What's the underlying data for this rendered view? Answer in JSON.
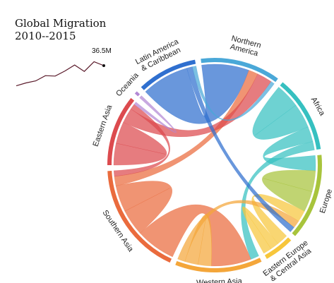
{
  "title_lines": [
    "Global Migration",
    "2010--2015"
  ],
  "sparkline": {
    "label": "36.5M",
    "values": [
      15.2,
      17.8,
      19.6,
      24.2,
      23.8,
      28.3,
      33.6,
      27.9,
      36.5,
      33.0
    ]
  },
  "chart_data": {
    "type": "chord",
    "title": "Global Migration 2010--2015",
    "regions": [
      {
        "name": "Northern America",
        "label_lines": [
          "Northern",
          "America"
        ],
        "color": "#4aa8d8"
      },
      {
        "name": "Africa",
        "label_lines": [
          "Africa"
        ],
        "color": "#36c0c0"
      },
      {
        "name": "Europe",
        "label_lines": [
          "Europe"
        ],
        "color": "#a8c43c"
      },
      {
        "name": "Eastern Europe & Central Asia",
        "label_lines": [
          "Eastern Europe",
          "& Central Asia"
        ],
        "color": "#f7c63b"
      },
      {
        "name": "Western Asia",
        "label_lines": [
          "Western Asia"
        ],
        "color": "#f4a63a"
      },
      {
        "name": "Southern Asia",
        "label_lines": [
          "Southern Asia"
        ],
        "color": "#ea6b3d"
      },
      {
        "name": "Eastern Asia",
        "label_lines": [
          "Eastern Asia"
        ],
        "color": "#dc4a4e"
      },
      {
        "name": "Oceania",
        "label_lines": [
          "Oceania"
        ],
        "color": "#b388d4"
      },
      {
        "name": "Latin America & Caribbean",
        "label_lines": [
          "Latin America",
          "& Caribbean"
        ],
        "color": "#2f6fcf"
      }
    ],
    "flows": [
      {
        "source": "Latin America & Caribbean",
        "target": "Northern America",
        "value": 5.0
      },
      {
        "source": "Africa",
        "target": "Africa",
        "value": 2.6
      },
      {
        "source": "Africa",
        "target": "Europe",
        "value": 1.6
      },
      {
        "source": "Africa",
        "target": "Western Asia",
        "value": 0.9
      },
      {
        "source": "Europe",
        "target": "Europe",
        "value": 2.2
      },
      {
        "source": "Eastern Europe & Central Asia",
        "target": "Europe",
        "value": 1.2
      },
      {
        "source": "Eastern Europe & Central Asia",
        "target": "Eastern Europe & Central Asia",
        "value": 0.9
      },
      {
        "source": "Southern Asia",
        "target": "Western Asia",
        "value": 4.2
      },
      {
        "source": "Southern Asia",
        "target": "Southern Asia",
        "value": 2.8
      },
      {
        "source": "Southern Asia",
        "target": "Northern America",
        "value": 1.0
      },
      {
        "source": "Eastern Asia",
        "target": "Eastern Asia",
        "value": 2.3
      },
      {
        "source": "Eastern Asia",
        "target": "Northern America",
        "value": 1.6
      },
      {
        "source": "Eastern Asia",
        "target": "Southern Asia",
        "value": 0.6
      },
      {
        "source": "Western Asia",
        "target": "Western Asia",
        "value": 1.4
      },
      {
        "source": "Western Asia",
        "target": "Europe",
        "value": 0.8
      },
      {
        "source": "Oceania",
        "target": "Eastern Asia",
        "value": 0.3
      },
      {
        "source": "Latin America & Caribbean",
        "target": "Europe",
        "value": 0.6
      },
      {
        "source": "Northern America",
        "target": "Latin America & Caribbean",
        "value": 0.4
      }
    ]
  }
}
